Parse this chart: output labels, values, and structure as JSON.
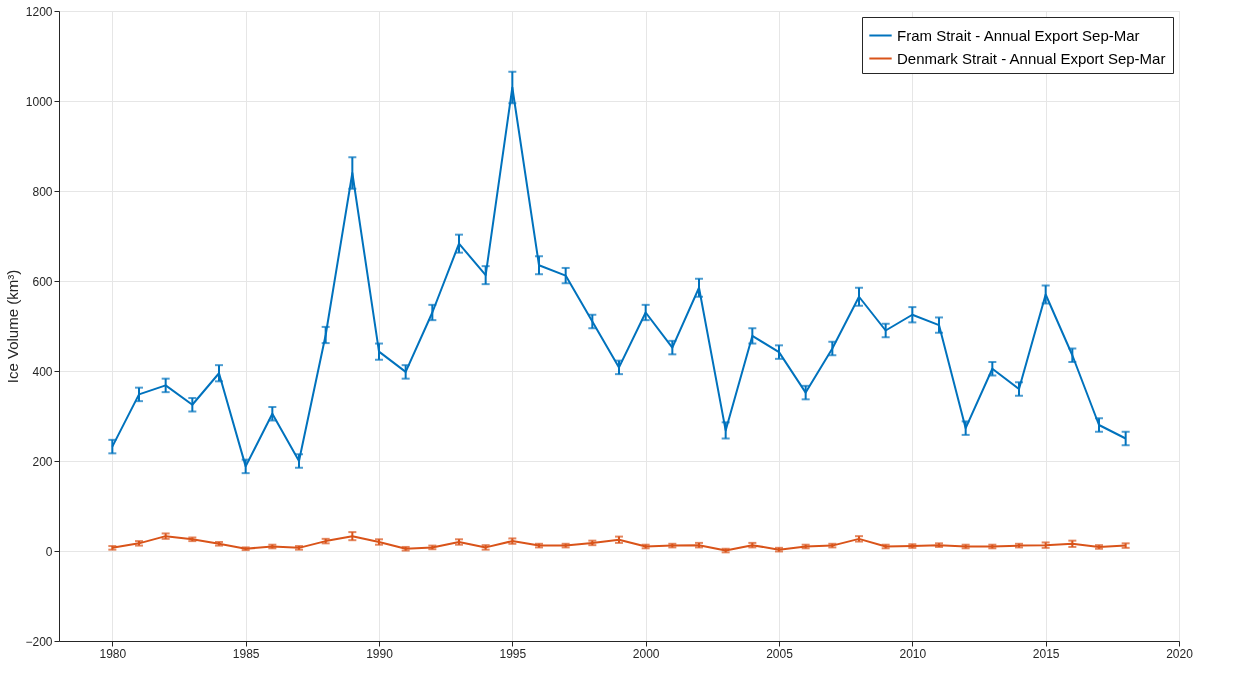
{
  "chart_data": {
    "type": "line",
    "ylabel": "Ice Volume (km³)",
    "x": [
      1980,
      1981,
      1982,
      1983,
      1984,
      1985,
      1986,
      1987,
      1988,
      1989,
      1990,
      1991,
      1992,
      1993,
      1994,
      1995,
      1996,
      1997,
      1998,
      1999,
      2000,
      2001,
      2002,
      2003,
      2004,
      2005,
      2006,
      2007,
      2008,
      2009,
      2010,
      2011,
      2012,
      2013,
      2014,
      2015,
      2016,
      2017,
      2018
    ],
    "series": [
      {
        "name": "Fram Strait - Annual Export Sep-Mar",
        "color": "#0072bd",
        "values": [
          232,
          348,
          368,
          325,
          395,
          188,
          305,
          200,
          480,
          840,
          443,
          398,
          530,
          683,
          613,
          1030,
          635,
          612,
          510,
          408,
          530,
          452,
          585,
          268,
          478,
          442,
          352,
          450,
          565,
          490,
          525,
          502,
          273,
          405,
          360,
          570,
          435,
          280,
          250
        ],
        "errors": [
          15,
          15,
          15,
          15,
          18,
          15,
          15,
          15,
          18,
          35,
          18,
          15,
          17,
          20,
          20,
          35,
          20,
          17,
          15,
          15,
          17,
          15,
          20,
          18,
          17,
          15,
          15,
          15,
          20,
          15,
          17,
          17,
          15,
          15,
          15,
          20,
          15,
          15,
          15
        ]
      },
      {
        "name": "Denmark Strait - Annual Export Sep-Mar",
        "color": "#d95319",
        "values": [
          7,
          17,
          33,
          26,
          16,
          5,
          10,
          7,
          22,
          33,
          20,
          5,
          8,
          20,
          8,
          22,
          12,
          12,
          18,
          25,
          10,
          12,
          13,
          1,
          13,
          3,
          10,
          12,
          27,
          10,
          11,
          13,
          10,
          10,
          12,
          13,
          16,
          9,
          12
        ],
        "errors": [
          4,
          5,
          6,
          4,
          4,
          3,
          4,
          4,
          5,
          9,
          6,
          4,
          4,
          6,
          5,
          6,
          4,
          4,
          5,
          7,
          4,
          4,
          5,
          4,
          5,
          4,
          4,
          4,
          6,
          4,
          4,
          4,
          4,
          4,
          4,
          6,
          7,
          4,
          5
        ]
      }
    ],
    "xlim": [
      1978,
      2020
    ],
    "xticks": [
      1980,
      1985,
      1990,
      1995,
      2000,
      2005,
      2010,
      2015,
      2020
    ],
    "ylim": [
      -200,
      1200
    ],
    "yticks": [
      -200,
      0,
      200,
      400,
      600,
      800,
      1000,
      1200
    ],
    "grid": true,
    "legend": "top right",
    "marker": "none",
    "line_style": "solid"
  }
}
